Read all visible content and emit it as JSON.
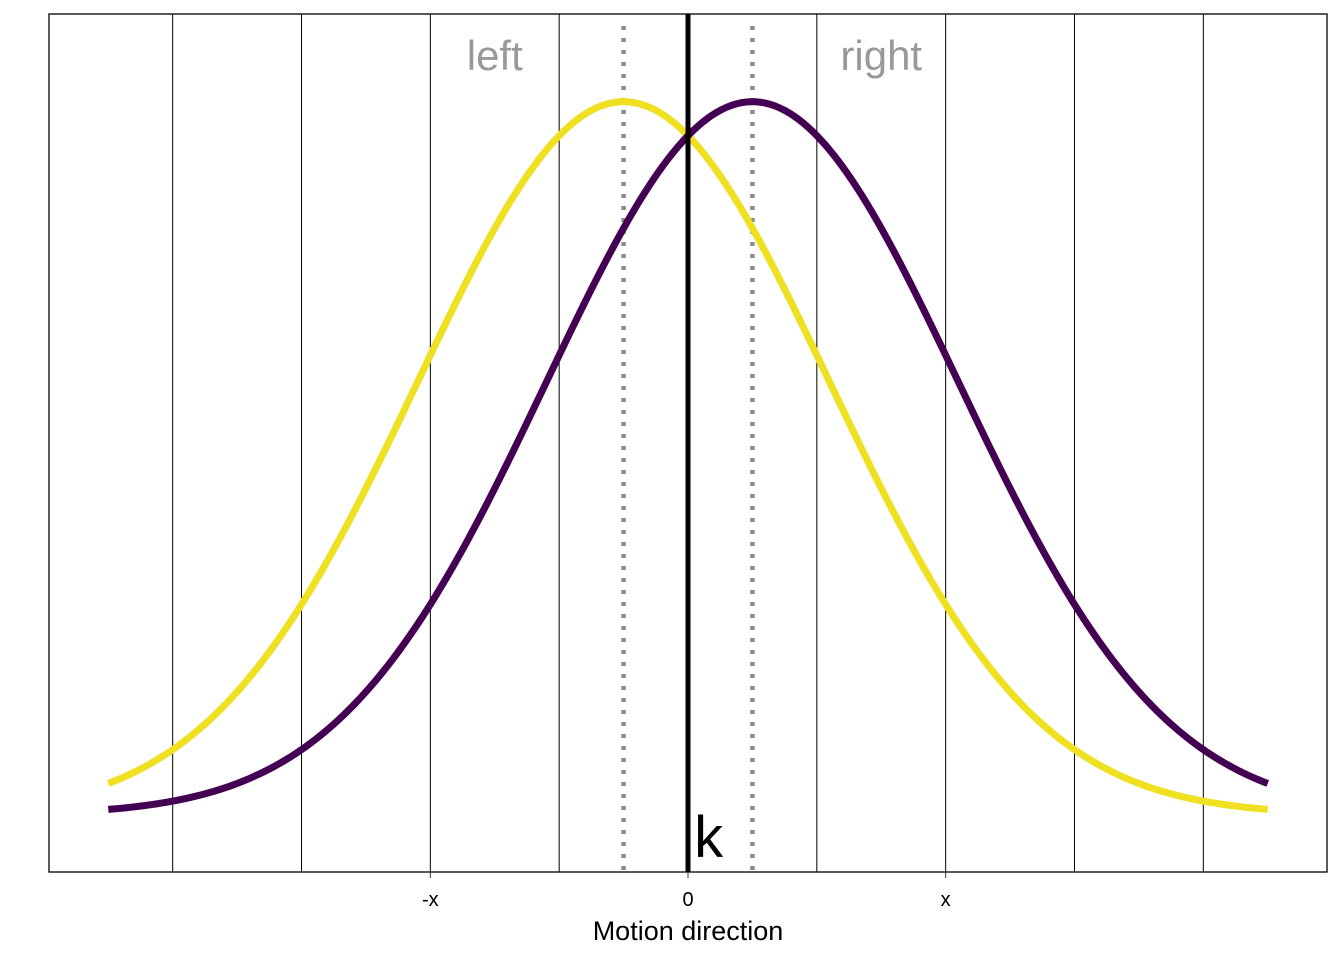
{
  "chart_data": {
    "type": "line",
    "title": "",
    "xlabel": "Motion direction",
    "ylabel": "",
    "xlim": [
      -2.48,
      2.48
    ],
    "ylim": [
      -0.04,
      0.56
    ],
    "grid": "vertical lines only",
    "x_ticks": [
      {
        "value": -1,
        "label": "-x"
      },
      {
        "value": 0,
        "label": "0"
      },
      {
        "value": 1,
        "label": "x"
      }
    ],
    "vertical_gridlines": [
      -2,
      -1.5,
      -1,
      -0.5,
      0,
      0.5,
      1,
      1.5,
      2
    ],
    "series": [
      {
        "name": "left",
        "distribution": "normal",
        "mean": -0.25,
        "sd": 0.8,
        "color": "#F0E022",
        "x_range": [
          -2.25,
          2.25
        ]
      },
      {
        "name": "right",
        "distribution": "normal",
        "mean": 0.25,
        "sd": 0.8,
        "color": "#440154",
        "x_range": [
          -2.25,
          2.25
        ]
      }
    ],
    "reference_lines": [
      {
        "name": "criterion",
        "x": 0,
        "style": "solid",
        "color": "#000000"
      },
      {
        "name": "left-mean",
        "x": -0.25,
        "style": "dotted",
        "color": "#8C8C8C"
      },
      {
        "name": "right-mean",
        "x": 0.25,
        "style": "dotted",
        "color": "#8C8C8C"
      }
    ],
    "annotations": [
      {
        "text": "left",
        "x": -0.75,
        "color": "#999999"
      },
      {
        "text": "right",
        "x": 0.75,
        "color": "#999999"
      },
      {
        "text": "k",
        "x": 0.08
      }
    ]
  }
}
